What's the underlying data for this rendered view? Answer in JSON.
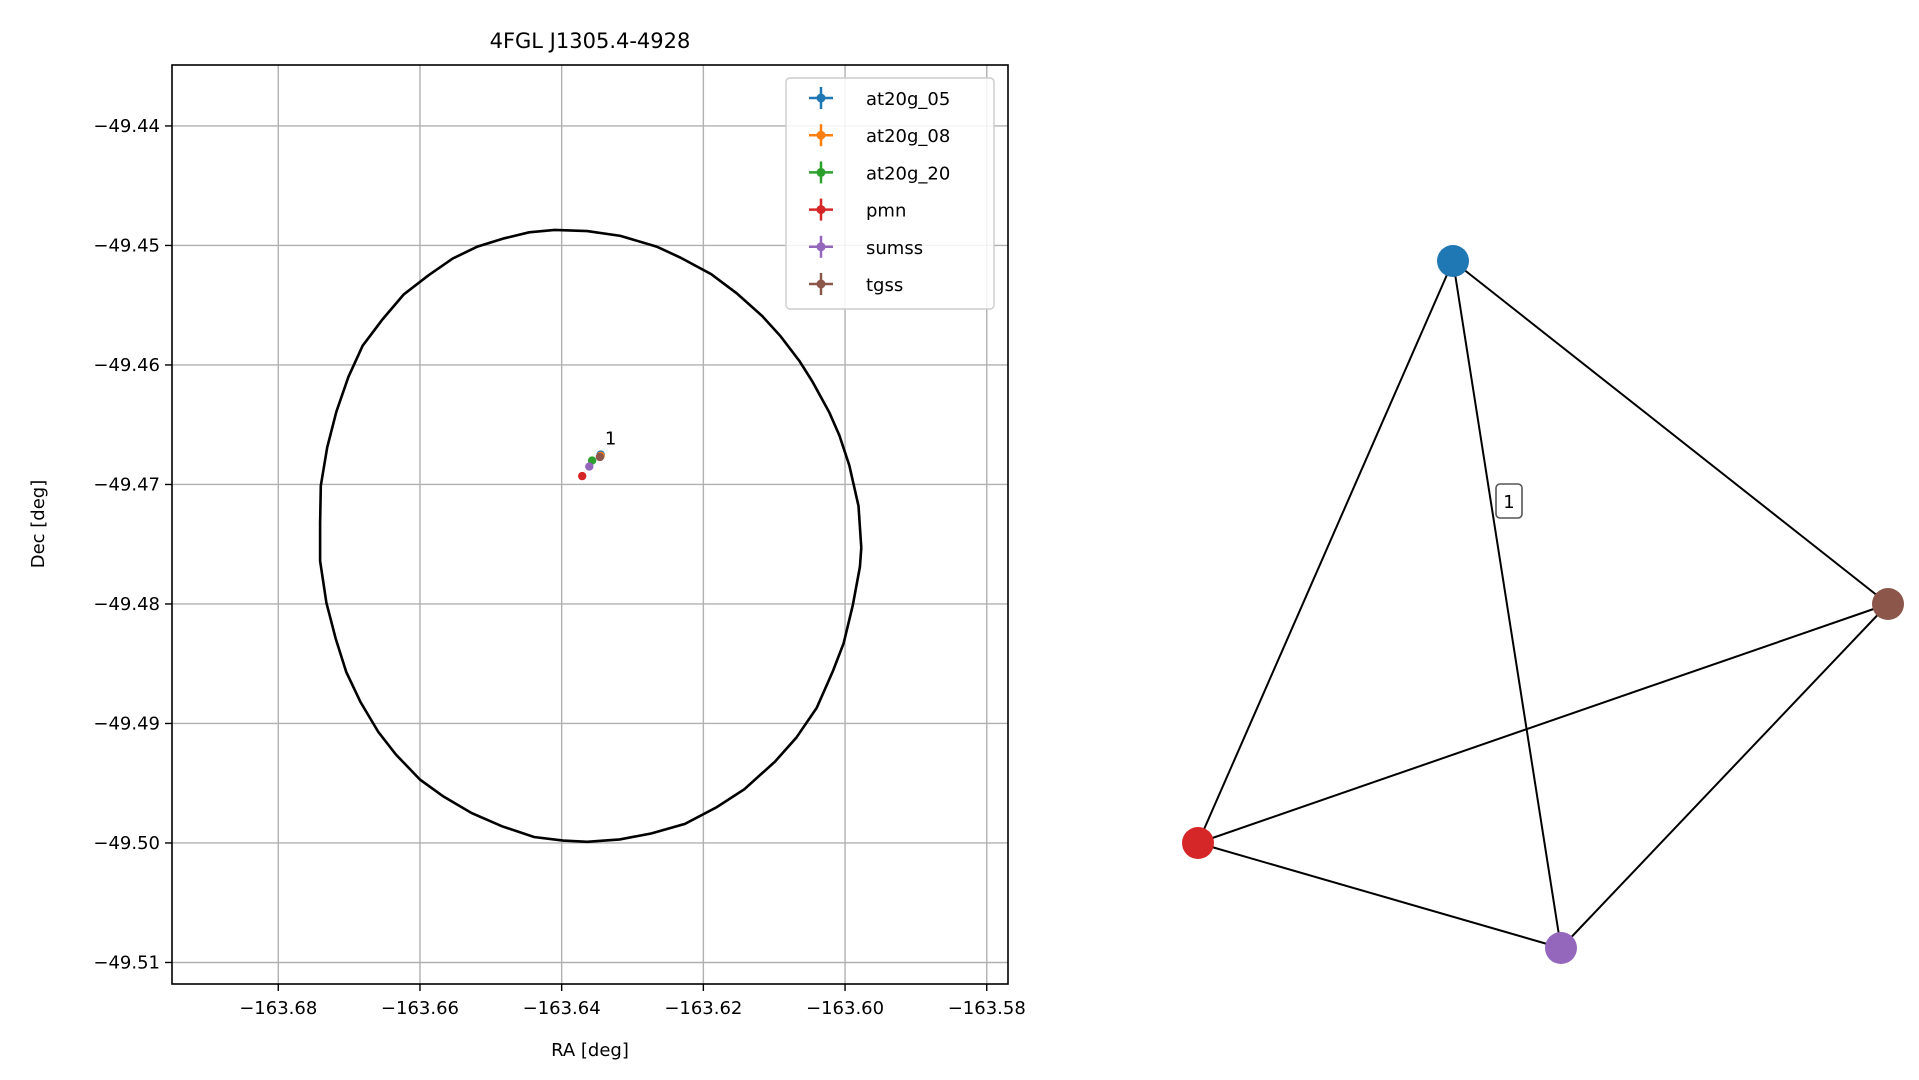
{
  "chart_data": [
    {
      "type": "scatter",
      "title": "4FGL J1305.4-4928",
      "xlabel": "RA [deg]",
      "ylabel": "Dec [deg]",
      "xlim": [
        -163.695,
        -163.577
      ],
      "ylim": [
        -49.5118,
        -49.4349
      ],
      "xticks": [
        -163.68,
        -163.66,
        -163.64,
        -163.62,
        -163.6,
        -163.58
      ],
      "xtick_labels": [
        "−163.68",
        "−163.66",
        "−163.64",
        "−163.62",
        "−163.60",
        "−163.58"
      ],
      "yticks": [
        -49.44,
        -49.45,
        -49.46,
        -49.47,
        -49.48,
        -49.49,
        -49.5,
        -49.51
      ],
      "ytick_labels": [
        "−49.44",
        "−49.45",
        "−49.46",
        "−49.47",
        "−49.48",
        "−49.49",
        "−49.50",
        "−49.51"
      ],
      "grid": true,
      "legend_position": "top-right",
      "ellipse": {
        "center": [
          -163.6363,
          -49.4733
        ],
        "vertices": [
          [
            -163.5977,
            -49.4753
          ],
          [
            -163.5981,
            -49.4718
          ],
          [
            -163.5994,
            -49.4684
          ],
          [
            -163.6008,
            -49.4659
          ],
          [
            -163.6022,
            -49.464
          ],
          [
            -163.6046,
            -49.4614
          ],
          [
            -163.6064,
            -49.4597
          ],
          [
            -163.6091,
            -49.4576
          ],
          [
            -163.6117,
            -49.4559
          ],
          [
            -163.6153,
            -49.454
          ],
          [
            -163.6189,
            -49.4524
          ],
          [
            -163.6233,
            -49.451
          ],
          [
            -163.6266,
            -49.4501
          ],
          [
            -163.6317,
            -49.4492
          ],
          [
            -163.6364,
            -49.4488
          ],
          [
            -163.641,
            -49.4487
          ],
          [
            -163.6446,
            -49.4489
          ],
          [
            -163.6481,
            -49.4494
          ],
          [
            -163.6519,
            -49.4501
          ],
          [
            -163.6554,
            -49.4511
          ],
          [
            -163.6588,
            -49.4525
          ],
          [
            -163.6623,
            -49.4541
          ],
          [
            -163.6653,
            -49.4562
          ],
          [
            -163.6681,
            -49.4584
          ],
          [
            -163.6701,
            -49.461
          ],
          [
            -163.6718,
            -49.4639
          ],
          [
            -163.6731,
            -49.4669
          ],
          [
            -163.674,
            -49.4701
          ],
          [
            -163.6741,
            -49.4733
          ],
          [
            -163.6741,
            -49.4764
          ],
          [
            -163.6732,
            -49.4799
          ],
          [
            -163.6719,
            -49.4829
          ],
          [
            -163.6704,
            -49.4857
          ],
          [
            -163.6684,
            -49.4882
          ],
          [
            -163.6659,
            -49.4907
          ],
          [
            -163.6634,
            -49.4926
          ],
          [
            -163.66,
            -49.4947
          ],
          [
            -163.6567,
            -49.4961
          ],
          [
            -163.6527,
            -49.4975
          ],
          [
            -163.6484,
            -49.4986
          ],
          [
            -163.6439,
            -49.4995
          ],
          [
            -163.6398,
            -49.4998
          ],
          [
            -163.6364,
            -49.4999
          ],
          [
            -163.6318,
            -49.4997
          ],
          [
            -163.6273,
            -49.4992
          ],
          [
            -163.6226,
            -49.4984
          ],
          [
            -163.6181,
            -49.497
          ],
          [
            -163.6142,
            -49.4955
          ],
          [
            -163.6099,
            -49.4932
          ],
          [
            -163.6069,
            -49.4912
          ],
          [
            -163.604,
            -49.4887
          ],
          [
            -163.6017,
            -49.4856
          ],
          [
            -163.6002,
            -49.4833
          ],
          [
            -163.5989,
            -49.4801
          ],
          [
            -163.5979,
            -49.4769
          ],
          [
            -163.5977,
            -49.4753
          ]
        ]
      },
      "series": [
        {
          "name": "at20g_05",
          "color": "#1f77b4",
          "x": [
            -163.6345
          ],
          "y": [
            -49.4675
          ]
        },
        {
          "name": "at20g_08",
          "color": "#ff7f0e",
          "x": [
            -163.6345
          ],
          "y": [
            -49.4676
          ]
        },
        {
          "name": "at20g_20",
          "color": "#2ca02c",
          "x": [
            -163.6357
          ],
          "y": [
            -49.468
          ]
        },
        {
          "name": "pmn",
          "color": "#d62728",
          "x": [
            -163.6371
          ],
          "y": [
            -49.4693
          ]
        },
        {
          "name": "sumss",
          "color": "#9467bd",
          "x": [
            -163.6361
          ],
          "y": [
            -49.4685
          ]
        },
        {
          "name": "tgss",
          "color": "#8c564b",
          "x": [
            -163.6346
          ],
          "y": [
            -49.4677
          ]
        }
      ],
      "annotations": [
        {
          "text": "1",
          "x": -163.6339,
          "y": -49.467
        }
      ]
    },
    {
      "type": "network",
      "nodes": [
        {
          "id": "at20g",
          "color": "#1f77b4"
        },
        {
          "id": "tgss",
          "color": "#8c564b"
        },
        {
          "id": "pmn",
          "color": "#d62728"
        },
        {
          "id": "sumss",
          "color": "#9467bd"
        }
      ],
      "edges": [
        [
          "at20g",
          "tgss"
        ],
        [
          "at20g",
          "pmn"
        ],
        [
          "at20g",
          "sumss"
        ],
        [
          "pmn",
          "tgss"
        ],
        [
          "pmn",
          "sumss"
        ],
        [
          "sumss",
          "tgss"
        ]
      ],
      "edge_labels": [
        {
          "edge": [
            "at20g",
            "sumss"
          ],
          "text": "1"
        }
      ]
    }
  ]
}
